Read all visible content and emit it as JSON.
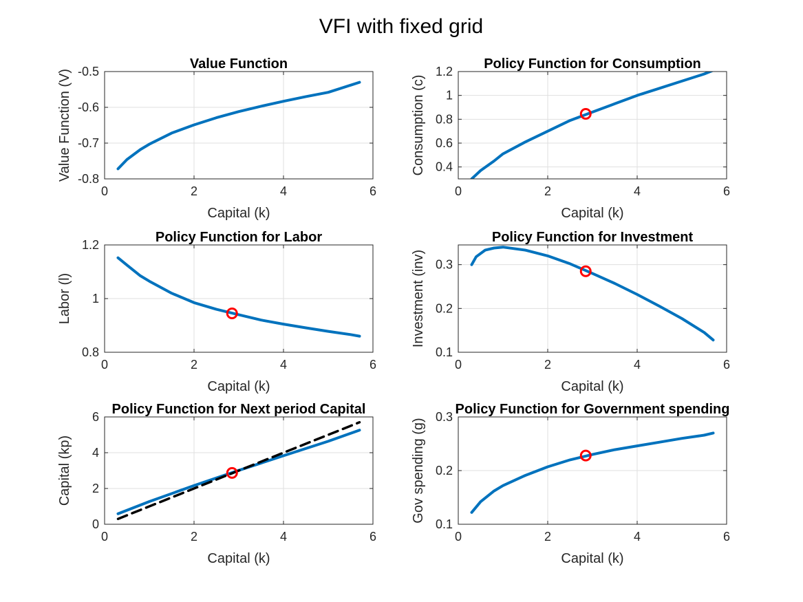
{
  "figure": {
    "title": "VFI with fixed grid"
  },
  "colors": {
    "line": "#0072BD",
    "marker": "#ff0000",
    "reference": "#000000",
    "grid": "#dfdfdf",
    "axis": "#262626"
  },
  "chart_data": [
    {
      "type": "line",
      "title": "Value Function",
      "xlabel": "Capital (k)",
      "ylabel": "Value Function (V)",
      "xlim": [
        0,
        6
      ],
      "ylim": [
        -0.8,
        -0.5
      ],
      "xticks": [
        0,
        2,
        4,
        6
      ],
      "yticks": [
        -0.8,
        -0.7,
        -0.6,
        -0.5
      ],
      "grid": true,
      "series": [
        {
          "style": "solid",
          "x": [
            0.3,
            0.5,
            0.8,
            1.0,
            1.5,
            2.0,
            2.5,
            3.0,
            3.5,
            4.0,
            4.5,
            5.0,
            5.5,
            5.7
          ],
          "y": [
            -0.772,
            -0.746,
            -0.718,
            -0.703,
            -0.672,
            -0.649,
            -0.629,
            -0.612,
            -0.597,
            -0.583,
            -0.57,
            -0.558,
            -0.538,
            -0.53
          ]
        }
      ],
      "marker": null
    },
    {
      "type": "line",
      "title": "Policy Function for Consumption",
      "xlabel": "Capital (k)",
      "ylabel": "Consumption (c)",
      "xlim": [
        0,
        6
      ],
      "ylim": [
        0.3,
        1.2
      ],
      "xticks": [
        0,
        2,
        4,
        6
      ],
      "yticks": [
        0.4,
        0.6,
        0.8,
        1,
        1.2
      ],
      "grid": true,
      "series": [
        {
          "style": "solid",
          "x": [
            0.3,
            0.5,
            0.8,
            1.0,
            1.5,
            2.0,
            2.5,
            3.0,
            3.5,
            4.0,
            4.5,
            5.0,
            5.5,
            5.7
          ],
          "y": [
            0.3,
            0.37,
            0.45,
            0.51,
            0.61,
            0.7,
            0.79,
            0.86,
            0.93,
            1.0,
            1.06,
            1.12,
            1.18,
            1.21
          ]
        }
      ],
      "marker": {
        "x": 2.85,
        "y": 0.845
      }
    },
    {
      "type": "line",
      "title": "Policy Function for Labor",
      "xlabel": "Capital (k)",
      "ylabel": "Labor (l)",
      "xlim": [
        0,
        6
      ],
      "ylim": [
        0.8,
        1.2
      ],
      "xticks": [
        0,
        2,
        4,
        6
      ],
      "yticks": [
        0.8,
        1,
        1.2
      ],
      "grid": true,
      "series": [
        {
          "style": "solid",
          "x": [
            0.3,
            0.5,
            0.8,
            1.0,
            1.5,
            2.0,
            2.5,
            3.0,
            3.5,
            4.0,
            4.5,
            5.0,
            5.5,
            5.7
          ],
          "y": [
            1.152,
            1.125,
            1.085,
            1.065,
            1.02,
            0.985,
            0.96,
            0.94,
            0.92,
            0.905,
            0.891,
            0.878,
            0.866,
            0.86
          ]
        }
      ],
      "marker": {
        "x": 2.85,
        "y": 0.945
      }
    },
    {
      "type": "line",
      "title": "Policy Function for Investment",
      "xlabel": "Capital (k)",
      "ylabel": "Investment (inv)",
      "xlim": [
        0,
        6
      ],
      "ylim": [
        0.1,
        0.345
      ],
      "xticks": [
        0,
        2,
        4,
        6
      ],
      "yticks": [
        0.1,
        0.2,
        0.3
      ],
      "grid": true,
      "series": [
        {
          "style": "solid",
          "x": [
            0.3,
            0.4,
            0.6,
            0.8,
            1.0,
            1.5,
            2.0,
            2.5,
            3.0,
            3.5,
            4.0,
            4.5,
            5.0,
            5.5,
            5.7
          ],
          "y": [
            0.3,
            0.318,
            0.333,
            0.338,
            0.34,
            0.333,
            0.32,
            0.302,
            0.28,
            0.257,
            0.232,
            0.205,
            0.177,
            0.145,
            0.128
          ]
        }
      ],
      "marker": {
        "x": 2.85,
        "y": 0.285
      }
    },
    {
      "type": "line",
      "title": "Policy Function for Next period Capital",
      "xlabel": "Capital (k)",
      "ylabel": "Capital (kp)",
      "xlim": [
        0,
        6
      ],
      "ylim": [
        0,
        6
      ],
      "xticks": [
        0,
        2,
        4,
        6
      ],
      "yticks": [
        0,
        2,
        4,
        6
      ],
      "grid": true,
      "series": [
        {
          "style": "solid",
          "x": [
            0.3,
            1.0,
            2.0,
            3.0,
            4.0,
            5.0,
            5.7
          ],
          "y": [
            0.59,
            1.27,
            2.16,
            3.01,
            3.83,
            4.64,
            5.26
          ]
        },
        {
          "style": "dashed",
          "x": [
            0.3,
            5.7
          ],
          "y": [
            0.3,
            5.7
          ]
        }
      ],
      "marker": {
        "x": 2.85,
        "y": 2.87
      }
    },
    {
      "type": "line",
      "title": "Policy Function for Government spending",
      "xlabel": "Capital (k)",
      "ylabel": "Gov spending (g)",
      "xlim": [
        0,
        6
      ],
      "ylim": [
        0.1,
        0.3
      ],
      "xticks": [
        0,
        2,
        4,
        6
      ],
      "yticks": [
        0.1,
        0.2,
        0.3
      ],
      "grid": true,
      "series": [
        {
          "style": "solid",
          "x": [
            0.3,
            0.5,
            0.8,
            1.0,
            1.5,
            2.0,
            2.5,
            3.0,
            3.5,
            4.0,
            4.5,
            5.0,
            5.5,
            5.7
          ],
          "y": [
            0.122,
            0.142,
            0.162,
            0.172,
            0.191,
            0.207,
            0.22,
            0.23,
            0.239,
            0.246,
            0.253,
            0.26,
            0.266,
            0.27
          ]
        }
      ],
      "marker": {
        "x": 2.85,
        "y": 0.228
      }
    }
  ]
}
